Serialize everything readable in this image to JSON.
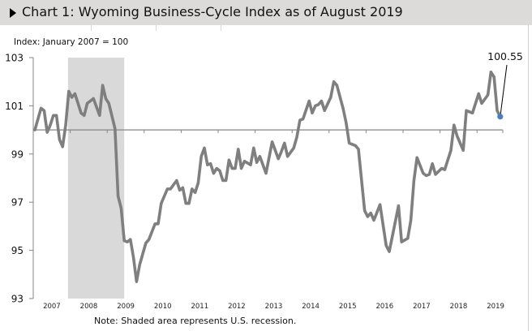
{
  "header": {
    "title": "Chart 1: Wyoming Business-Cycle Index as of August 2019",
    "expand_icon": "triangle-right-icon"
  },
  "chart_data": {
    "type": "line",
    "title": "Chart 1: Wyoming Business-Cycle Index as of August 2019",
    "ylabel": "Index: January 2007 = 100",
    "xlabel": "",
    "ylim": [
      93,
      103
    ],
    "yticks": [
      "103",
      "101",
      "99",
      "97",
      "95",
      "93"
    ],
    "xticks": [
      "2007",
      "2008",
      "2009",
      "2010",
      "2011",
      "2012",
      "2013",
      "2014",
      "2015",
      "2016",
      "2017",
      "2018",
      "2019"
    ],
    "baseline": 100,
    "grid": false,
    "line_color": "#7f7f7f",
    "marker_color": "#4a7ec2",
    "recession": {
      "start": "2007-12",
      "end": "2009-06",
      "color": "#d9d9d9"
    },
    "annotation": {
      "date": "2019-08",
      "value": 100.55,
      "label": "100.55"
    },
    "note": "Note: Shaded area represents U.S. recession.",
    "series": [
      {
        "points": [
          [
            "2007-01",
            100.0
          ],
          [
            "2007-03",
            100.9
          ],
          [
            "2007-04",
            100.8
          ],
          [
            "2007-05",
            99.9
          ],
          [
            "2007-06",
            100.2
          ],
          [
            "2007-07",
            100.6
          ],
          [
            "2007-08",
            100.6
          ],
          [
            "2007-09",
            99.6
          ],
          [
            "2007-10",
            99.3
          ],
          [
            "2007-11",
            100.2
          ],
          [
            "2007-12",
            101.6
          ],
          [
            "2008-01",
            101.35
          ],
          [
            "2008-02",
            101.5
          ],
          [
            "2008-04",
            100.7
          ],
          [
            "2008-05",
            100.6
          ],
          [
            "2008-06",
            101.1
          ],
          [
            "2008-08",
            101.3
          ],
          [
            "2008-10",
            100.6
          ],
          [
            "2008-11",
            101.85
          ],
          [
            "2008-12",
            101.3
          ],
          [
            "2009-01",
            101.1
          ],
          [
            "2009-03",
            100.05
          ],
          [
            "2009-04",
            97.25
          ],
          [
            "2009-05",
            96.75
          ],
          [
            "2009-06",
            95.4
          ],
          [
            "2009-07",
            95.35
          ],
          [
            "2009-08",
            95.45
          ],
          [
            "2009-09",
            94.7
          ],
          [
            "2009-10",
            93.7
          ],
          [
            "2009-11",
            94.4
          ],
          [
            "2010-01",
            95.3
          ],
          [
            "2010-02",
            95.45
          ],
          [
            "2010-04",
            96.1
          ],
          [
            "2010-05",
            96.1
          ],
          [
            "2010-06",
            96.95
          ],
          [
            "2010-08",
            97.55
          ],
          [
            "2010-09",
            97.55
          ],
          [
            "2010-11",
            97.9
          ],
          [
            "2010-12",
            97.5
          ],
          [
            "2011-01",
            97.6
          ],
          [
            "2011-02",
            96.95
          ],
          [
            "2011-03",
            96.95
          ],
          [
            "2011-04",
            97.55
          ],
          [
            "2011-05",
            97.4
          ],
          [
            "2011-06",
            97.8
          ],
          [
            "2011-07",
            98.9
          ],
          [
            "2011-08",
            99.25
          ],
          [
            "2011-09",
            98.55
          ],
          [
            "2011-10",
            98.6
          ],
          [
            "2011-11",
            98.2
          ],
          [
            "2011-12",
            98.4
          ],
          [
            "2012-01",
            98.3
          ],
          [
            "2012-02",
            97.9
          ],
          [
            "2012-03",
            97.9
          ],
          [
            "2012-04",
            98.75
          ],
          [
            "2012-05",
            98.4
          ],
          [
            "2012-06",
            98.4
          ],
          [
            "2012-07",
            99.2
          ],
          [
            "2012-08",
            98.4
          ],
          [
            "2012-09",
            98.7
          ],
          [
            "2012-11",
            98.55
          ],
          [
            "2012-12",
            99.25
          ],
          [
            "2013-01",
            98.65
          ],
          [
            "2013-02",
            98.9
          ],
          [
            "2013-04",
            98.2
          ],
          [
            "2013-06",
            99.5
          ],
          [
            "2013-08",
            98.8
          ],
          [
            "2013-09",
            99.1
          ],
          [
            "2013-10",
            99.45
          ],
          [
            "2013-11",
            98.9
          ],
          [
            "2014-01",
            99.25
          ],
          [
            "2014-02",
            99.7
          ],
          [
            "2014-03",
            100.4
          ],
          [
            "2014-04",
            100.45
          ],
          [
            "2014-06",
            101.2
          ],
          [
            "2014-07",
            100.7
          ],
          [
            "2014-08",
            101.0
          ],
          [
            "2014-09",
            101.05
          ],
          [
            "2014-10",
            101.2
          ],
          [
            "2014-11",
            100.8
          ],
          [
            "2015-01",
            101.35
          ],
          [
            "2015-02",
            102.0
          ],
          [
            "2015-03",
            101.85
          ],
          [
            "2015-05",
            100.9
          ],
          [
            "2015-06",
            100.3
          ],
          [
            "2015-07",
            99.45
          ],
          [
            "2015-09",
            99.35
          ],
          [
            "2015-10",
            99.2
          ],
          [
            "2015-12",
            96.65
          ],
          [
            "2016-01",
            96.4
          ],
          [
            "2016-02",
            96.55
          ],
          [
            "2016-03",
            96.25
          ],
          [
            "2016-05",
            96.9
          ],
          [
            "2016-07",
            95.2
          ],
          [
            "2016-08",
            94.95
          ],
          [
            "2016-11",
            96.85
          ],
          [
            "2016-12",
            95.35
          ],
          [
            "2017-02",
            95.5
          ],
          [
            "2017-03",
            96.25
          ],
          [
            "2017-04",
            97.9
          ],
          [
            "2017-05",
            98.85
          ],
          [
            "2017-07",
            98.2
          ],
          [
            "2017-08",
            98.1
          ],
          [
            "2017-09",
            98.15
          ],
          [
            "2017-10",
            98.6
          ],
          [
            "2017-11",
            98.15
          ],
          [
            "2018-01",
            98.4
          ],
          [
            "2018-02",
            98.35
          ],
          [
            "2018-04",
            99.15
          ],
          [
            "2018-05",
            100.2
          ],
          [
            "2018-06",
            99.75
          ],
          [
            "2018-08",
            99.15
          ],
          [
            "2018-09",
            100.8
          ],
          [
            "2018-10",
            100.75
          ],
          [
            "2018-11",
            100.7
          ],
          [
            "2019-01",
            101.5
          ],
          [
            "2019-02",
            101.1
          ],
          [
            "2019-04",
            101.45
          ],
          [
            "2019-05",
            102.4
          ],
          [
            "2019-06",
            102.2
          ],
          [
            "2019-07",
            100.8
          ],
          [
            "2019-08",
            100.55
          ]
        ]
      }
    ]
  }
}
